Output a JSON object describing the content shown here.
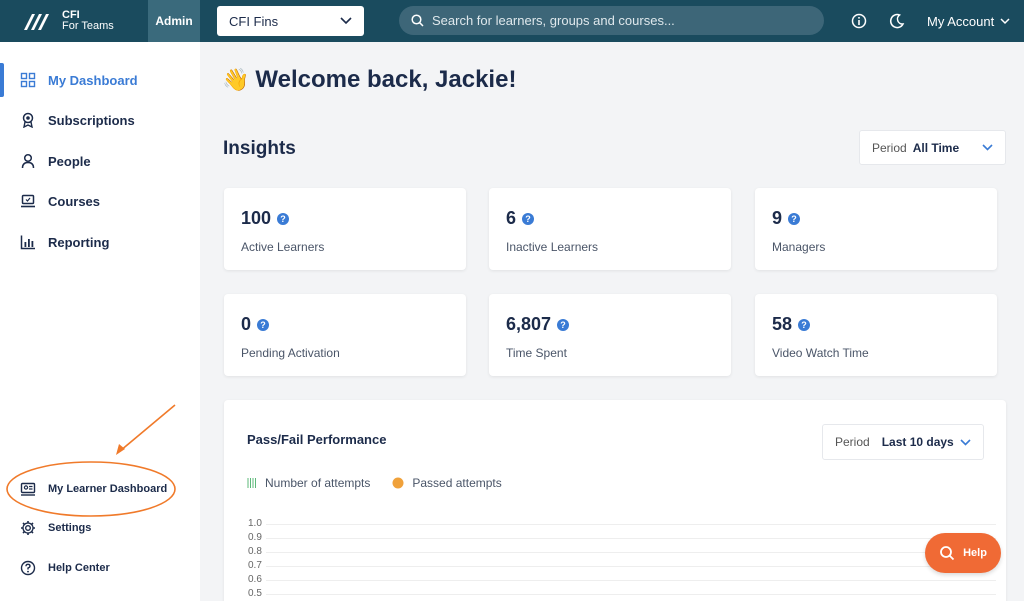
{
  "brand": {
    "name": "CFI",
    "sub": "For Teams",
    "admin_tab": "Admin"
  },
  "topbar": {
    "org_select": "CFI Fins",
    "search_placeholder": "Search for learners, groups and courses...",
    "account_label": "My Account"
  },
  "sidebar": {
    "items": [
      {
        "label": "My Dashboard",
        "icon": "grid-icon"
      },
      {
        "label": "Subscriptions",
        "icon": "badge-icon"
      },
      {
        "label": "People",
        "icon": "person-icon"
      },
      {
        "label": "Courses",
        "icon": "laptop-icon"
      },
      {
        "label": "Reporting",
        "icon": "bar-chart-icon"
      }
    ],
    "bottom_items": [
      {
        "label": "My Learner Dashboard",
        "icon": "learner-dashboard-icon"
      },
      {
        "label": "Settings",
        "icon": "gear-icon"
      },
      {
        "label": "Help Center",
        "icon": "question-icon"
      }
    ]
  },
  "main": {
    "welcome": "Welcome back, Jackie!",
    "insights_title": "Insights",
    "insights_period": {
      "label": "Period",
      "value": "All Time"
    },
    "cards": [
      {
        "value": "100",
        "label": "Active Learners"
      },
      {
        "value": "6",
        "label": "Inactive Learners"
      },
      {
        "value": "9",
        "label": "Managers"
      },
      {
        "value": "0",
        "label": "Pending Activation"
      },
      {
        "value": "6,807",
        "label": "Time Spent"
      },
      {
        "value": "58",
        "label": "Video Watch Time"
      }
    ],
    "performance": {
      "title": "Pass/Fail Performance",
      "period": {
        "label": "Period",
        "value": "Last 10 days"
      },
      "legend": [
        "Number of attempts",
        "Passed attempts"
      ],
      "y_ticks": [
        "1.0",
        "0.9",
        "0.8",
        "0.7",
        "0.6",
        "0.5"
      ]
    }
  },
  "help_button": "Help",
  "colors": {
    "topbar": "#1a4b5e",
    "accent": "#3a7bd5",
    "help": "#f06a35",
    "annotation": "#f07a2a"
  }
}
